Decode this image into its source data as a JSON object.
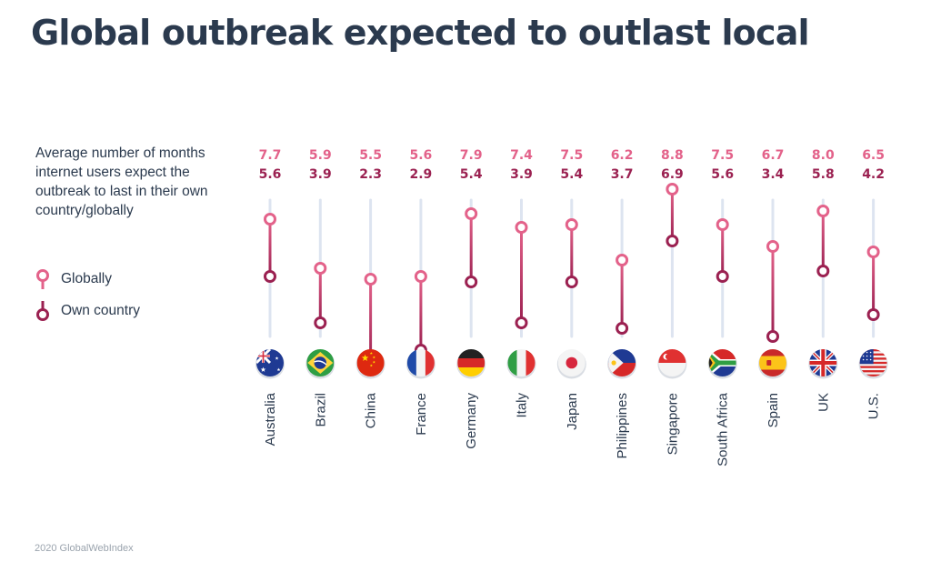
{
  "title": "Global outbreak expected to outlast local",
  "description": "Average number of months internet users expect the outbreak to last in their own country/globally",
  "legend": [
    {
      "label": "Globally",
      "color": "#e3628a"
    },
    {
      "label": "Own country",
      "color": "#9b2151"
    }
  ],
  "footer": "2020 GlobalWebIndex",
  "chart_data": {
    "type": "dumbbell",
    "categories": [
      "Australia",
      "Brazil",
      "China",
      "France",
      "Germany",
      "Italy",
      "Japan",
      "Philippines",
      "Singapore",
      "South Africa",
      "Spain",
      "UK",
      "U.S."
    ],
    "series": [
      {
        "name": "Globally",
        "values": [
          7.7,
          5.9,
          5.5,
          5.6,
          7.9,
          7.4,
          7.5,
          6.2,
          8.8,
          7.5,
          6.7,
          8.0,
          6.5
        ],
        "color": "#e3628a"
      },
      {
        "name": "Own country",
        "values": [
          5.6,
          3.9,
          2.3,
          2.9,
          5.4,
          3.9,
          5.4,
          3.7,
          6.9,
          5.6,
          3.4,
          5.8,
          4.2
        ],
        "color": "#9b2151"
      }
    ],
    "flags": [
      "australia-flag",
      "brazil-flag",
      "china-flag",
      "france-flag",
      "germany-flag",
      "italy-flag",
      "japan-flag",
      "philippines-flag",
      "singapore-flag",
      "south-africa-flag",
      "spain-flag",
      "uk-flag",
      "us-flag"
    ]
  }
}
